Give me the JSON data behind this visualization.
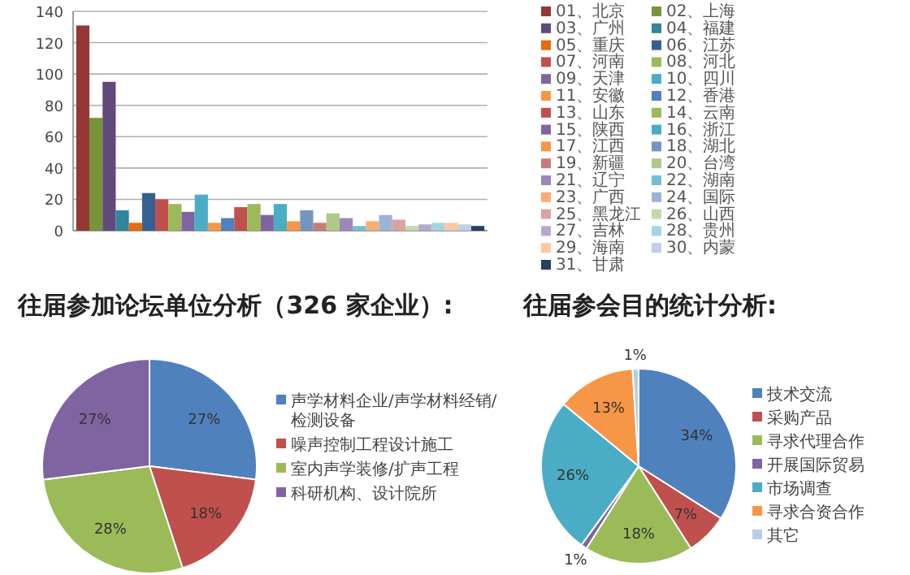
{
  "chart_data": [
    {
      "type": "bar",
      "categories": [
        null
      ],
      "ylim": [
        0,
        140
      ],
      "yticks": [
        0,
        20,
        40,
        60,
        80,
        100,
        120,
        140
      ],
      "grid": "y",
      "legend": "right",
      "series": [
        {
          "name": "01、北京",
          "color": "#953735",
          "values": [
            131
          ]
        },
        {
          "name": "02、上海",
          "color": "#77933c",
          "values": [
            72
          ]
        },
        {
          "name": "03、广州",
          "color": "#604a7b",
          "values": [
            95
          ]
        },
        {
          "name": "04、福建",
          "color": "#31859c",
          "values": [
            13
          ]
        },
        {
          "name": "05、重庆",
          "color": "#e46c0a",
          "values": [
            5
          ]
        },
        {
          "name": "06、江苏",
          "color": "#376092",
          "values": [
            24
          ]
        },
        {
          "name": "07、河南",
          "color": "#c0504d",
          "values": [
            20
          ]
        },
        {
          "name": "08、河北",
          "color": "#9bbb59",
          "values": [
            17
          ]
        },
        {
          "name": "09、天津",
          "color": "#8064a2",
          "values": [
            12
          ]
        },
        {
          "name": "10、四川",
          "color": "#4bacc6",
          "values": [
            23
          ]
        },
        {
          "name": "11、安徽",
          "color": "#f79646",
          "values": [
            5
          ]
        },
        {
          "name": "12、香港",
          "color": "#4f81bd",
          "values": [
            8
          ]
        },
        {
          "name": "13、山东",
          "color": "#c0504d",
          "values": [
            15
          ]
        },
        {
          "name": "14、云南",
          "color": "#9bbb59",
          "values": [
            17
          ]
        },
        {
          "name": "15、陕西",
          "color": "#8064a2",
          "values": [
            10
          ]
        },
        {
          "name": "16、浙江",
          "color": "#4bacc6",
          "values": [
            17
          ]
        },
        {
          "name": "17、江西",
          "color": "#f79646",
          "values": [
            6
          ]
        },
        {
          "name": "18、湖北",
          "color": "#7395bf",
          "values": [
            13
          ]
        },
        {
          "name": "19、新疆",
          "color": "#c77c7a",
          "values": [
            5
          ]
        },
        {
          "name": "20、台湾",
          "color": "#aec88a",
          "values": [
            11
          ]
        },
        {
          "name": "21、辽宁",
          "color": "#9c87b8",
          "values": [
            8
          ]
        },
        {
          "name": "22、湖南",
          "color": "#74bfd4",
          "values": [
            3
          ]
        },
        {
          "name": "23、广西",
          "color": "#f9ad74",
          "values": [
            6
          ]
        },
        {
          "name": "24、国际",
          "color": "#9db3d6",
          "values": [
            10
          ]
        },
        {
          "name": "25、黑龙江",
          "color": "#d9a3a2",
          "values": [
            7
          ]
        },
        {
          "name": "26、山西",
          "color": "#c6d8ae",
          "values": [
            3
          ]
        },
        {
          "name": "27、吉林",
          "color": "#b7a9ca",
          "values": [
            4
          ]
        },
        {
          "name": "28、贵州",
          "color": "#a3d4e2",
          "values": [
            5
          ]
        },
        {
          "name": "29、海南",
          "color": "#f8c8a4",
          "values": [
            5
          ]
        },
        {
          "name": "30、内蒙",
          "color": "#c2cfe4",
          "values": [
            4
          ]
        },
        {
          "name": "31、甘肃",
          "color": "#254061",
          "values": [
            3
          ]
        }
      ]
    },
    {
      "type": "pie",
      "title": "往届参加论坛单位分析（326 家企业）:",
      "legend": "right",
      "value_labels": [
        "27%",
        "18%",
        "28%",
        "27%"
      ],
      "categories": [
        "声学材料企业/声学材料经销/检测设备",
        "噪声控制工程设计施工",
        "室内声学装修/扩声工程",
        "科研机构、设计院所"
      ],
      "values": [
        27,
        18,
        28,
        27
      ],
      "colors": [
        "#4f81bd",
        "#c0504d",
        "#9bbb59",
        "#8064a2"
      ]
    },
    {
      "type": "pie",
      "title": "往届参会目的统计分析:",
      "legend": "right",
      "value_labels": [
        "34%",
        "7%",
        "18%",
        "1%",
        "26%",
        "13%",
        "1%"
      ],
      "categories": [
        "技术交流",
        "采购产品",
        "寻求代理合作",
        "开展国际贸易",
        "市场调查",
        "寻求合资合作",
        "其它"
      ],
      "values": [
        34,
        7,
        18,
        1,
        26,
        13,
        1
      ],
      "colors": [
        "#4f81bd",
        "#c0504d",
        "#9bbb59",
        "#8064a2",
        "#4bacc6",
        "#f79646",
        "#b9cde5"
      ]
    }
  ]
}
